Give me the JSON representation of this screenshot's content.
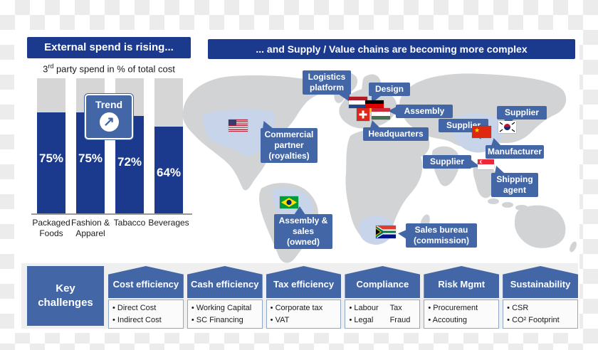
{
  "colors": {
    "navy": "#1b3a8e",
    "mid_blue": "#4366a6",
    "bar_gray": "#d6d6d6",
    "map_land": "#d2d3d5",
    "map_highlight": "#c7d4ea",
    "section_bg": "#efefef"
  },
  "left_panel": {
    "header": "External spend is rising...",
    "subtitle": {
      "base": "3",
      "sup": "rd",
      "rest": " party spend in % of total cost"
    },
    "trend_label": "Trend",
    "trend_arrow": "↗"
  },
  "chart_data": {
    "type": "bar",
    "title": "3rd party spend in % of total cost",
    "categories": [
      "Packaged Foods",
      "Fashion & Apparel",
      "Tabacco",
      "Beverages"
    ],
    "values": [
      75,
      75,
      72,
      64
    ],
    "value_labels": [
      "75%",
      "75%",
      "72%",
      "64%"
    ],
    "ylabel": "% of total cost",
    "ylim": [
      0,
      100
    ],
    "grid": false,
    "annotations": [
      "Trend"
    ]
  },
  "right_panel": {
    "header": "... and Supply / Value chains are becoming more complex",
    "map_labels": {
      "logistics_platform": "Logistics platform",
      "design": "Design",
      "assembly": "Assembly",
      "headquarters": "Headquarters",
      "commercial_partner": "Commercial partner (royalties)",
      "supplier_korea": "Supplier",
      "supplier_china": "Supplier",
      "supplier_india": "Supplier",
      "manufacturer": "Manufacturer",
      "shipping_agent": "Shipping agent",
      "assembly_sales": "Assembly & sales (owned)",
      "sales_bureau": "Sales bureau (commission)"
    },
    "flags": [
      "flag-usa-icon",
      "flag-netherlands-icon",
      "flag-germany-icon",
      "flag-switzerland-icon",
      "flag-hungary-icon",
      "flag-china-icon",
      "flag-south-korea-icon",
      "flag-singapore-icon",
      "flag-brazil-icon",
      "flag-south-africa-icon"
    ]
  },
  "key_challenges": {
    "title": "Key challenges",
    "columns": [
      {
        "header": "Cost efficiency",
        "items": [
          "Direct Cost",
          "Indirect Cost"
        ]
      },
      {
        "header": "Cash efficiency",
        "items": [
          "Working Capital",
          "SC Financing"
        ]
      },
      {
        "header": "Tax efficiency",
        "items": [
          "Corporate tax",
          "VAT"
        ]
      },
      {
        "header": "Compliance",
        "items_left": [
          "Labour",
          "Legal"
        ],
        "items_right": [
          "Tax",
          "Fraud"
        ]
      },
      {
        "header": "Risk Mgmt",
        "items": [
          "Procurement",
          "Accouting"
        ]
      },
      {
        "header": "Sustainability",
        "items": [
          "CSR",
          "CO² Footprint"
        ]
      }
    ]
  }
}
